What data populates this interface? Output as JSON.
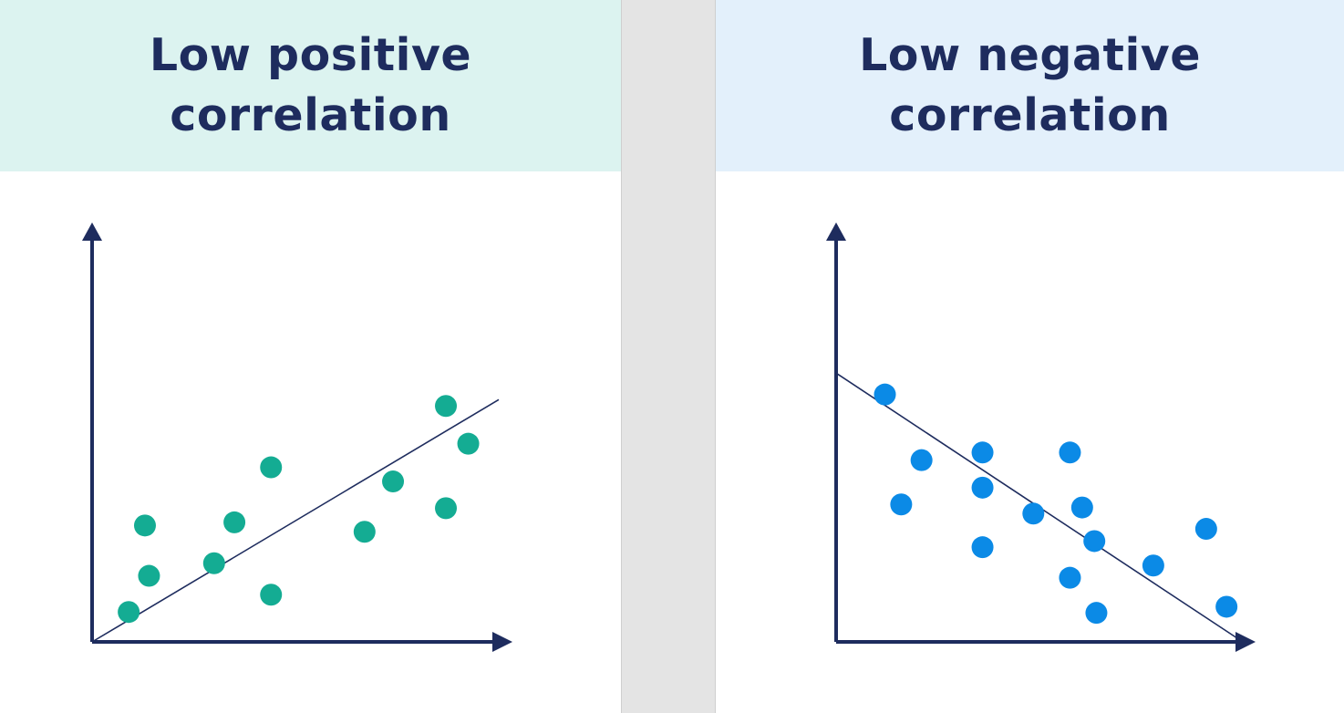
{
  "colors": {
    "background_gap": "#e4e4e4",
    "panel": "#ffffff",
    "axis": "#1e2c5e",
    "title": "#1e2c5e"
  },
  "chart_data": [
    {
      "type": "scatter",
      "title_lines": [
        "Low positive",
        "correlation"
      ],
      "header_color": "#dcf3f0",
      "point_color": "#14ac93",
      "xlabel": "",
      "ylabel": "",
      "xlim": [
        0,
        10
      ],
      "ylim": [
        0,
        10
      ],
      "grid": false,
      "points": [
        {
          "x": 0.9,
          "y": 0.95
        },
        {
          "x": 1.4,
          "y": 2.1
        },
        {
          "x": 1.3,
          "y": 3.7
        },
        {
          "x": 3.0,
          "y": 2.5
        },
        {
          "x": 3.5,
          "y": 3.8
        },
        {
          "x": 4.4,
          "y": 1.5
        },
        {
          "x": 4.4,
          "y": 5.55
        },
        {
          "x": 6.7,
          "y": 3.5
        },
        {
          "x": 7.4,
          "y": 5.1
        },
        {
          "x": 8.7,
          "y": 4.25
        },
        {
          "x": 8.7,
          "y": 7.5
        },
        {
          "x": 9.25,
          "y": 6.3
        }
      ],
      "trend_line": {
        "x1": 0,
        "y1": 0,
        "x2": 10,
        "y2": 7.7
      }
    },
    {
      "type": "scatter",
      "title_lines": [
        "Low negative",
        "correlation"
      ],
      "header_color": "#e3f0fb",
      "point_color": "#0b8ae6",
      "xlabel": "",
      "ylabel": "",
      "xlim": [
        0,
        10
      ],
      "ylim": [
        0,
        10
      ],
      "grid": false,
      "points": [
        {
          "x": 1.2,
          "y": 8.1
        },
        {
          "x": 2.1,
          "y": 5.95
        },
        {
          "x": 1.6,
          "y": 4.5
        },
        {
          "x": 3.6,
          "y": 6.2
        },
        {
          "x": 3.6,
          "y": 5.05
        },
        {
          "x": 3.6,
          "y": 3.1
        },
        {
          "x": 4.85,
          "y": 4.2
        },
        {
          "x": 5.75,
          "y": 6.2
        },
        {
          "x": 6.05,
          "y": 4.4
        },
        {
          "x": 6.35,
          "y": 3.3
        },
        {
          "x": 5.75,
          "y": 2.1
        },
        {
          "x": 6.4,
          "y": 0.95
        },
        {
          "x": 7.8,
          "y": 2.5
        },
        {
          "x": 9.1,
          "y": 3.7
        },
        {
          "x": 9.6,
          "y": 1.15
        }
      ],
      "trend_line": {
        "x1": 0,
        "y1": 8.8,
        "x2": 10,
        "y2": 0
      }
    }
  ]
}
